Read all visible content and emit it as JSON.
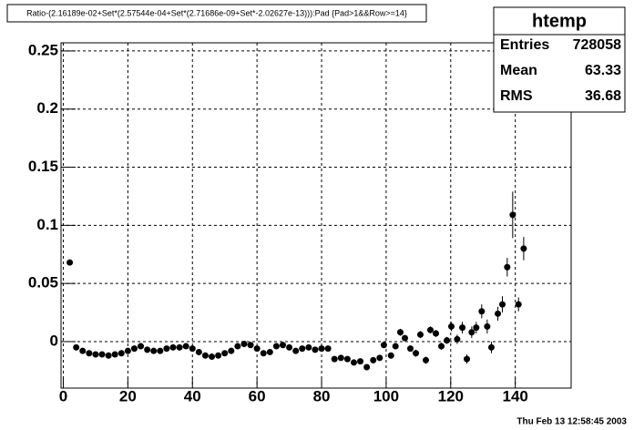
{
  "chart_data": {
    "type": "scatter",
    "title": "Ratio-(2.16189e-02+Set*(2.57544e-04+Set*(2.71686e-09+Set*-2.02627e-13))):Pad {Pad>1&&Row>=14}",
    "annotation": "Thu Feb 13 12:58:45 2003",
    "stats": {
      "title": "htemp",
      "labels": [
        "Entries",
        "Mean",
        "RMS"
      ],
      "values": [
        "728058",
        "63.33",
        "36.68"
      ]
    },
    "grid": true,
    "color": "#000000",
    "xlim": [
      -0.7,
      157.3
    ],
    "ylim": [
      -0.04,
      0.257
    ],
    "xticks": [
      0,
      20,
      40,
      60,
      80,
      100,
      120,
      140
    ],
    "yticks": [
      0,
      0.05,
      0.1,
      0.15,
      0.2,
      0.25
    ],
    "x": [
      2,
      4,
      6,
      8,
      10,
      12,
      14,
      16,
      18,
      20,
      22,
      24,
      26,
      28,
      30,
      32,
      34,
      36,
      38,
      40,
      42,
      44,
      46,
      48,
      50,
      52,
      54,
      56,
      58,
      60,
      62,
      64,
      66,
      68,
      70,
      72,
      74,
      76,
      78,
      80,
      82,
      84,
      86,
      88,
      90,
      92,
      94,
      96,
      98,
      99.3,
      101.5,
      102.9,
      104.4,
      105.8,
      107.5,
      109.2,
      110.6,
      112.3,
      113.7,
      115.4,
      117.1,
      118.8,
      120.2,
      122,
      123.6,
      125,
      126.5,
      127.9,
      129.6,
      131.3,
      132.6,
      134.6,
      136,
      137.5,
      139.2,
      141,
      142.6
    ],
    "values": [
      0.068,
      -0.005,
      -0.008,
      -0.01,
      -0.011,
      -0.011,
      -0.012,
      -0.011,
      -0.01,
      -0.008,
      -0.006,
      -0.004,
      -0.007,
      -0.008,
      -0.008,
      -0.006,
      -0.005,
      -0.005,
      -0.004,
      -0.006,
      -0.009,
      -0.012,
      -0.013,
      -0.012,
      -0.01,
      -0.008,
      -0.004,
      -0.002,
      -0.003,
      -0.006,
      -0.01,
      -0.009,
      -0.004,
      -0.003,
      -0.005,
      -0.008,
      -0.006,
      -0.005,
      -0.007,
      -0.006,
      -0.006,
      -0.015,
      -0.014,
      -0.015,
      -0.018,
      -0.017,
      -0.022,
      -0.016,
      -0.014,
      -0.003,
      -0.012,
      -0.004,
      0.008,
      0.003,
      -0.006,
      -0.01,
      0.006,
      -0.016,
      0.01,
      0.007,
      -0.004,
      0.001,
      0.013,
      0.002,
      0.012,
      -0.015,
      0.008,
      0.012,
      0.026,
      0.013,
      -0.005,
      0.024,
      0.032,
      0.064,
      0.109,
      0.032,
      0.08
    ],
    "errors": [
      0.002,
      0.001,
      0.001,
      0.001,
      0.001,
      0.001,
      0.001,
      0.001,
      0.001,
      0.001,
      0.001,
      0.001,
      0.001,
      0.001,
      0.001,
      0.001,
      0.001,
      0.001,
      0.001,
      0.001,
      0.001,
      0.001,
      0.001,
      0.001,
      0.001,
      0.001,
      0.001,
      0.001,
      0.001,
      0.001,
      0.001,
      0.001,
      0.001,
      0.001,
      0.001,
      0.001,
      0.001,
      0.001,
      0.001,
      0.001,
      0.001,
      0.001,
      0.001,
      0.001,
      0.001,
      0.001,
      0.001,
      0.001,
      0.001,
      0.002,
      0.002,
      0.002,
      0.003,
      0.002,
      0.002,
      0.003,
      0.003,
      0.003,
      0.003,
      0.003,
      0.003,
      0.003,
      0.004,
      0.004,
      0.005,
      0.004,
      0.005,
      0.005,
      0.006,
      0.006,
      0.005,
      0.006,
      0.007,
      0.008,
      0.02,
      0.006,
      0.01
    ]
  }
}
